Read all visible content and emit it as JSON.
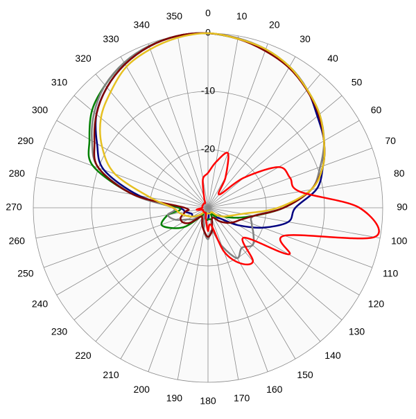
{
  "chart_data": {
    "type": "polar",
    "theta": [
      0,
      10,
      20,
      30,
      40,
      50,
      60,
      70,
      80,
      90,
      100,
      110,
      120,
      130,
      140,
      150,
      160,
      170,
      180,
      190,
      200,
      210,
      220,
      230,
      240,
      250,
      260,
      270,
      280,
      290,
      300,
      310,
      320,
      330,
      340,
      350
    ],
    "thetaticks": [
      0,
      10,
      20,
      30,
      40,
      50,
      60,
      70,
      80,
      90,
      100,
      110,
      120,
      130,
      140,
      150,
      160,
      170,
      180,
      190,
      200,
      210,
      220,
      230,
      240,
      250,
      260,
      270,
      280,
      290,
      300,
      310,
      320,
      330,
      340,
      350
    ],
    "rlim": [
      -30,
      0
    ],
    "rticks": [
      0,
      -10,
      -20
    ],
    "grid": true,
    "series": [
      {
        "color": "#000080",
        "values": [
          0,
          -0.5,
          -1.2,
          -2,
          -3.5,
          -5.5,
          -7,
          -9,
          -11,
          -15,
          -16,
          -20,
          -24,
          -27,
          -28,
          -29,
          -29,
          -29,
          -28,
          -28,
          -29,
          -29,
          -29,
          -28,
          -27,
          -27,
          -26,
          -25,
          -18,
          -11,
          -8,
          -5,
          -3,
          -1.5,
          -0.5,
          0
        ]
      },
      {
        "color": "#008000",
        "values": [
          0,
          -0.5,
          -1,
          -2,
          -3.5,
          -5,
          -7,
          -9,
          -12,
          -17,
          -22,
          -25,
          -27,
          -28,
          -28,
          -29,
          -28,
          -28,
          -28,
          -28,
          -29,
          -29,
          -28,
          -25,
          -23,
          -21.5,
          -23,
          -25,
          -17,
          -9,
          -6.5,
          -4,
          -2.5,
          -1.2,
          -0.4,
          0
        ]
      },
      {
        "color": "#808080",
        "values": [
          0,
          -0.4,
          -1,
          -2,
          -3.5,
          -5,
          -7,
          -9.5,
          -12,
          -17,
          -22,
          -22,
          -21,
          -20,
          -21,
          -20,
          -23,
          -26,
          -24.6,
          -26,
          -28,
          -29,
          -29,
          -27,
          -26,
          -24,
          -23,
          -24,
          -17,
          -10,
          -7,
          -4.5,
          -2.5,
          -1.2,
          -0.4,
          0
        ]
      },
      {
        "color": "#800000",
        "values": [
          0,
          -0.5,
          -1.3,
          -2.2,
          -3.6,
          -5.2,
          -7,
          -9,
          -12,
          -17,
          -22,
          -24,
          -25,
          -26,
          -27,
          -28,
          -28,
          -26,
          -25,
          -26,
          -27,
          -28,
          -28,
          -26,
          -25,
          -25,
          -26,
          -26,
          -17,
          -10,
          -7.5,
          -5,
          -3,
          -1.5,
          -0.5,
          0
        ]
      },
      {
        "color": "#e6c020",
        "values": [
          0,
          -0.5,
          -1,
          -2,
          -3.5,
          -5,
          -7,
          -9,
          -12,
          -18,
          -24,
          -26,
          -27,
          -28,
          -29,
          -29,
          -29,
          -29,
          -29,
          -29,
          -29,
          -29,
          -29,
          -28,
          -27,
          -26,
          -25,
          -24,
          -20,
          -13,
          -9,
          -6,
          -4,
          -2,
          -1,
          -0.3
        ]
      },
      {
        "color": "#ff0000",
        "values": [
          -24,
          -22,
          -20,
          -24,
          -27,
          -22,
          -16,
          -15,
          -14,
          -4,
          -1,
          -16,
          -14,
          -22,
          -18,
          -19,
          -22,
          -27,
          -26,
          -28,
          -29,
          -29,
          -29,
          -29,
          -29,
          -29,
          -28,
          -29,
          -29,
          -29,
          -29,
          -29,
          -29,
          -29,
          -28,
          -25
        ]
      }
    ]
  }
}
